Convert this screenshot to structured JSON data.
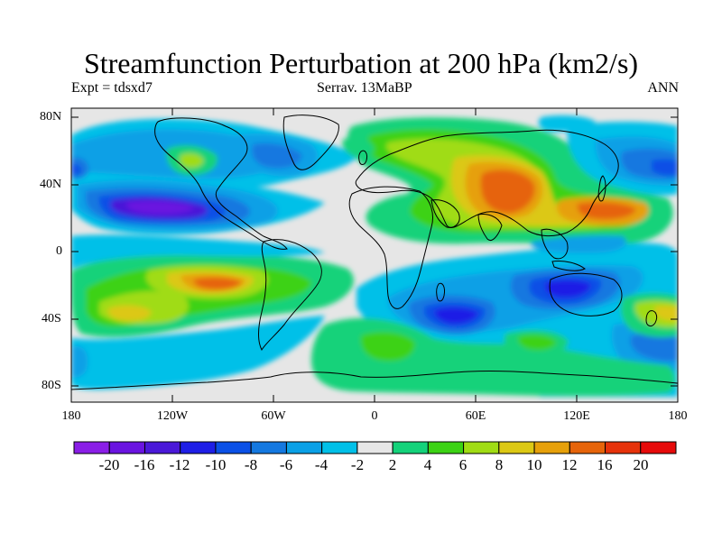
{
  "title": "Streamfunction Perturbation at 200 hPa (km2/s)",
  "subtitle": {
    "left": "Expt = tdsxd7",
    "center": "Serrav.   13MaBP",
    "right": "ANN"
  },
  "y_axis_labels": [
    "80N",
    "40N",
    "0",
    "40S",
    "80S"
  ],
  "x_axis_labels": [
    "180",
    "120W",
    "60W",
    "0",
    "60E",
    "120E",
    "180"
  ],
  "colorbar": {
    "labels": [
      "-20",
      "-16",
      "-12",
      "-10",
      "-8",
      "-6",
      "-4",
      "-2",
      "2",
      "4",
      "6",
      "8",
      "10",
      "12",
      "16",
      "20"
    ],
    "colors": [
      "#8a1ee6",
      "#6a14e0",
      "#4a18d8",
      "#1e1ee6",
      "#0a50e6",
      "#1478e0",
      "#0aa0e6",
      "#00c0e8",
      "#e6e6e6",
      "#14d27a",
      "#3cd214",
      "#a0dc14",
      "#dcc814",
      "#e6a00a",
      "#e6640a",
      "#e6320a",
      "#e60a0a"
    ]
  },
  "background_color": "#e6e6e6"
}
